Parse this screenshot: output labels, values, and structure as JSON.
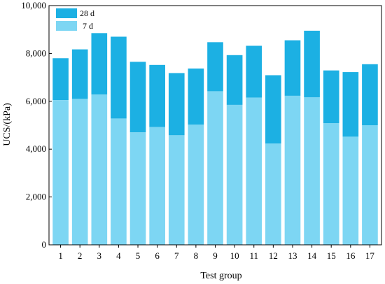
{
  "chart_data": {
    "type": "bar",
    "stacked": true,
    "xlabel": "Test group",
    "ylabel": "UCS/(kPa)",
    "categories": [
      "1",
      "2",
      "3",
      "4",
      "5",
      "6",
      "7",
      "8",
      "9",
      "10",
      "11",
      "12",
      "13",
      "14",
      "15",
      "16",
      "17"
    ],
    "ylim": [
      0,
      10000
    ],
    "yticks": [
      0,
      2000,
      4000,
      6000,
      8000,
      10000
    ],
    "ytick_labels": [
      "0",
      "2,000",
      "4,000",
      "6,000",
      "8,000",
      "10,000"
    ],
    "series": [
      {
        "name": "7 d",
        "color": "#7dd6f3",
        "values": [
          6050,
          6100,
          6280,
          5280,
          4700,
          4920,
          4580,
          5020,
          6420,
          5850,
          6150,
          4230,
          6230,
          6170,
          5080,
          4520,
          5000
        ]
      },
      {
        "name": "28 d",
        "color": "#1cb0e3",
        "totals": [
          7800,
          8170,
          8850,
          8700,
          7650,
          7520,
          7180,
          7370,
          8470,
          7930,
          8320,
          7090,
          8550,
          8950,
          7290,
          7220,
          7550
        ]
      }
    ],
    "legend": {
      "position": "top-left",
      "entries": [
        "28 d",
        "7 d"
      ]
    },
    "grid": false
  }
}
